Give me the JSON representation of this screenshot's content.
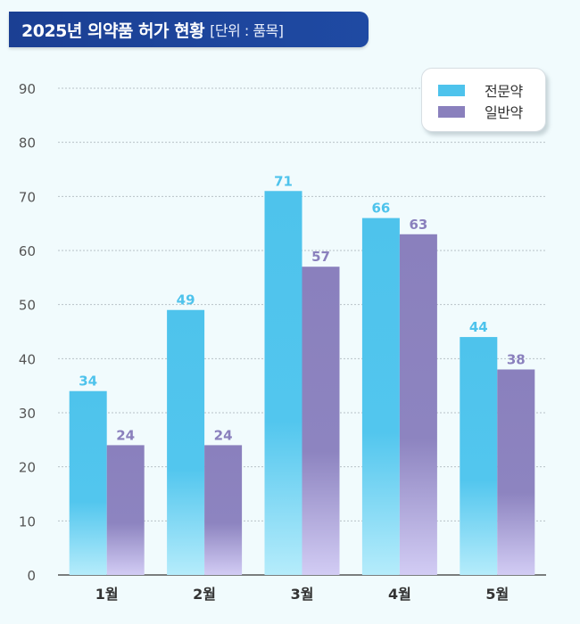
{
  "header": {
    "title": "2025년 의약품 허가 현황",
    "unit": "[단위 : 품목]"
  },
  "colors": {
    "prescription": "#4ec3ec",
    "otc": "#8a80bd",
    "grid": "#b8c2c8",
    "axis": "#333333",
    "tick_text": "#555555",
    "background": "#f1fbfd"
  },
  "chart_data": {
    "type": "bar",
    "title": "2025년 의약품 허가 현황",
    "subtitle": "[단위 : 품목]",
    "categories": [
      "1월",
      "2월",
      "3월",
      "4월",
      "5월"
    ],
    "series": [
      {
        "name": "전문약",
        "values": [
          34,
          49,
          71,
          66,
          44
        ]
      },
      {
        "name": "일반약",
        "values": [
          24,
          24,
          57,
          63,
          38
        ]
      }
    ],
    "ylim": [
      0,
      90
    ],
    "yticks": [
      0,
      10,
      20,
      30,
      40,
      50,
      60,
      70,
      80,
      90
    ],
    "grid": true,
    "legend_position": "top-right"
  }
}
